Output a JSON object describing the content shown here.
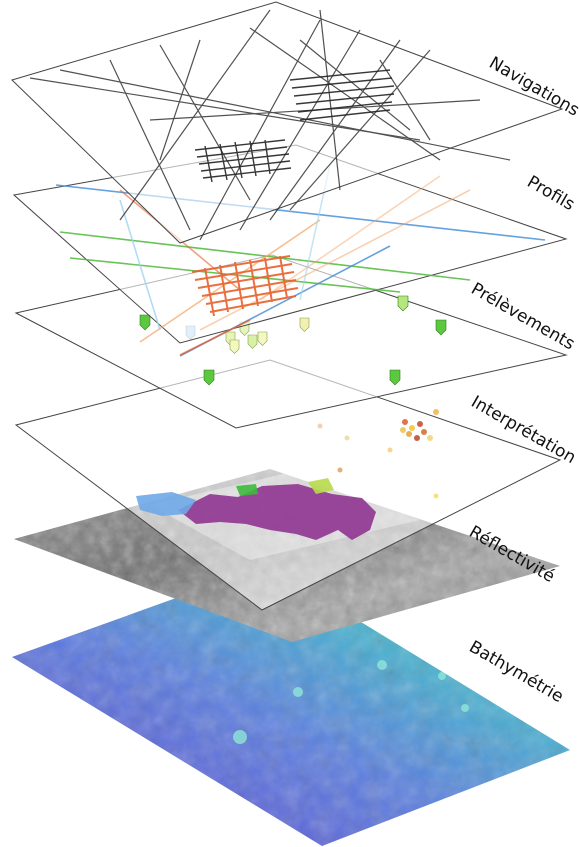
{
  "layers": [
    {
      "key": "navigations",
      "label": "Navigations",
      "color": "#333333"
    },
    {
      "key": "profils",
      "label": "Profils",
      "color": "#e8602c"
    },
    {
      "key": "prelevements",
      "label": "Prélèvements",
      "color": "#4fb83a"
    },
    {
      "key": "interpretation",
      "label": "Interprétation",
      "color": "#8b2a8c"
    },
    {
      "key": "reflectivite",
      "label": "Réflectivité",
      "color": "#8a8a8a"
    },
    {
      "key": "bathymetrie",
      "label": "Bathymétrie",
      "color": "#5a3fcf"
    }
  ],
  "palette": {
    "profile_lines": [
      "#e8602c",
      "#4fb83a",
      "#4a90d9",
      "#f4a261",
      "#9fd3f0"
    ],
    "marker_green": "#5cc83f",
    "marker_pale": "#d8f0a8",
    "interp_purple": "#8b2a8c",
    "interp_blue": "#6fa8e8",
    "bathy_deep": "#4b3cc4",
    "bathy_shallow": "#38c9c4"
  }
}
